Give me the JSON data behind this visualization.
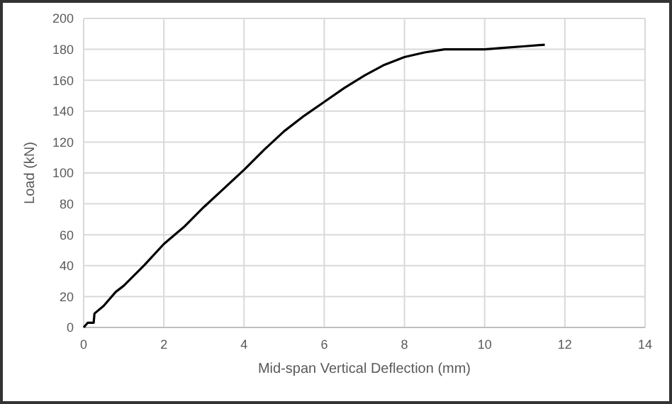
{
  "chart_data": {
    "type": "line",
    "xlabel": "Mid-span Vertical Deflection (mm)",
    "ylabel": "Load (kN)",
    "series": [
      {
        "color": "#000000",
        "x": [
          0,
          0.1,
          0.25,
          0.27,
          0.5,
          0.8,
          1,
          1.5,
          2,
          2.5,
          3,
          3.5,
          4,
          4.5,
          5,
          5.5,
          6,
          6.5,
          7,
          7.5,
          8,
          8.5,
          9,
          9.4,
          10,
          10.5,
          11,
          11.5
        ],
        "values": [
          0,
          3,
          3,
          9,
          14,
          23,
          27,
          40,
          54,
          65,
          78,
          90,
          102,
          115,
          127,
          137,
          146,
          155,
          163,
          170,
          175,
          178,
          180,
          180,
          180,
          181,
          182,
          183
        ]
      }
    ],
    "xlim": [
      0,
      14
    ],
    "xticks": [
      0,
      2,
      4,
      6,
      8,
      10,
      12,
      14
    ],
    "ylim": [
      0,
      200
    ],
    "yticks": [
      0,
      20,
      40,
      60,
      80,
      100,
      120,
      140,
      160,
      180,
      200
    ],
    "grid": true,
    "marker": "none",
    "line_style": "solid"
  }
}
